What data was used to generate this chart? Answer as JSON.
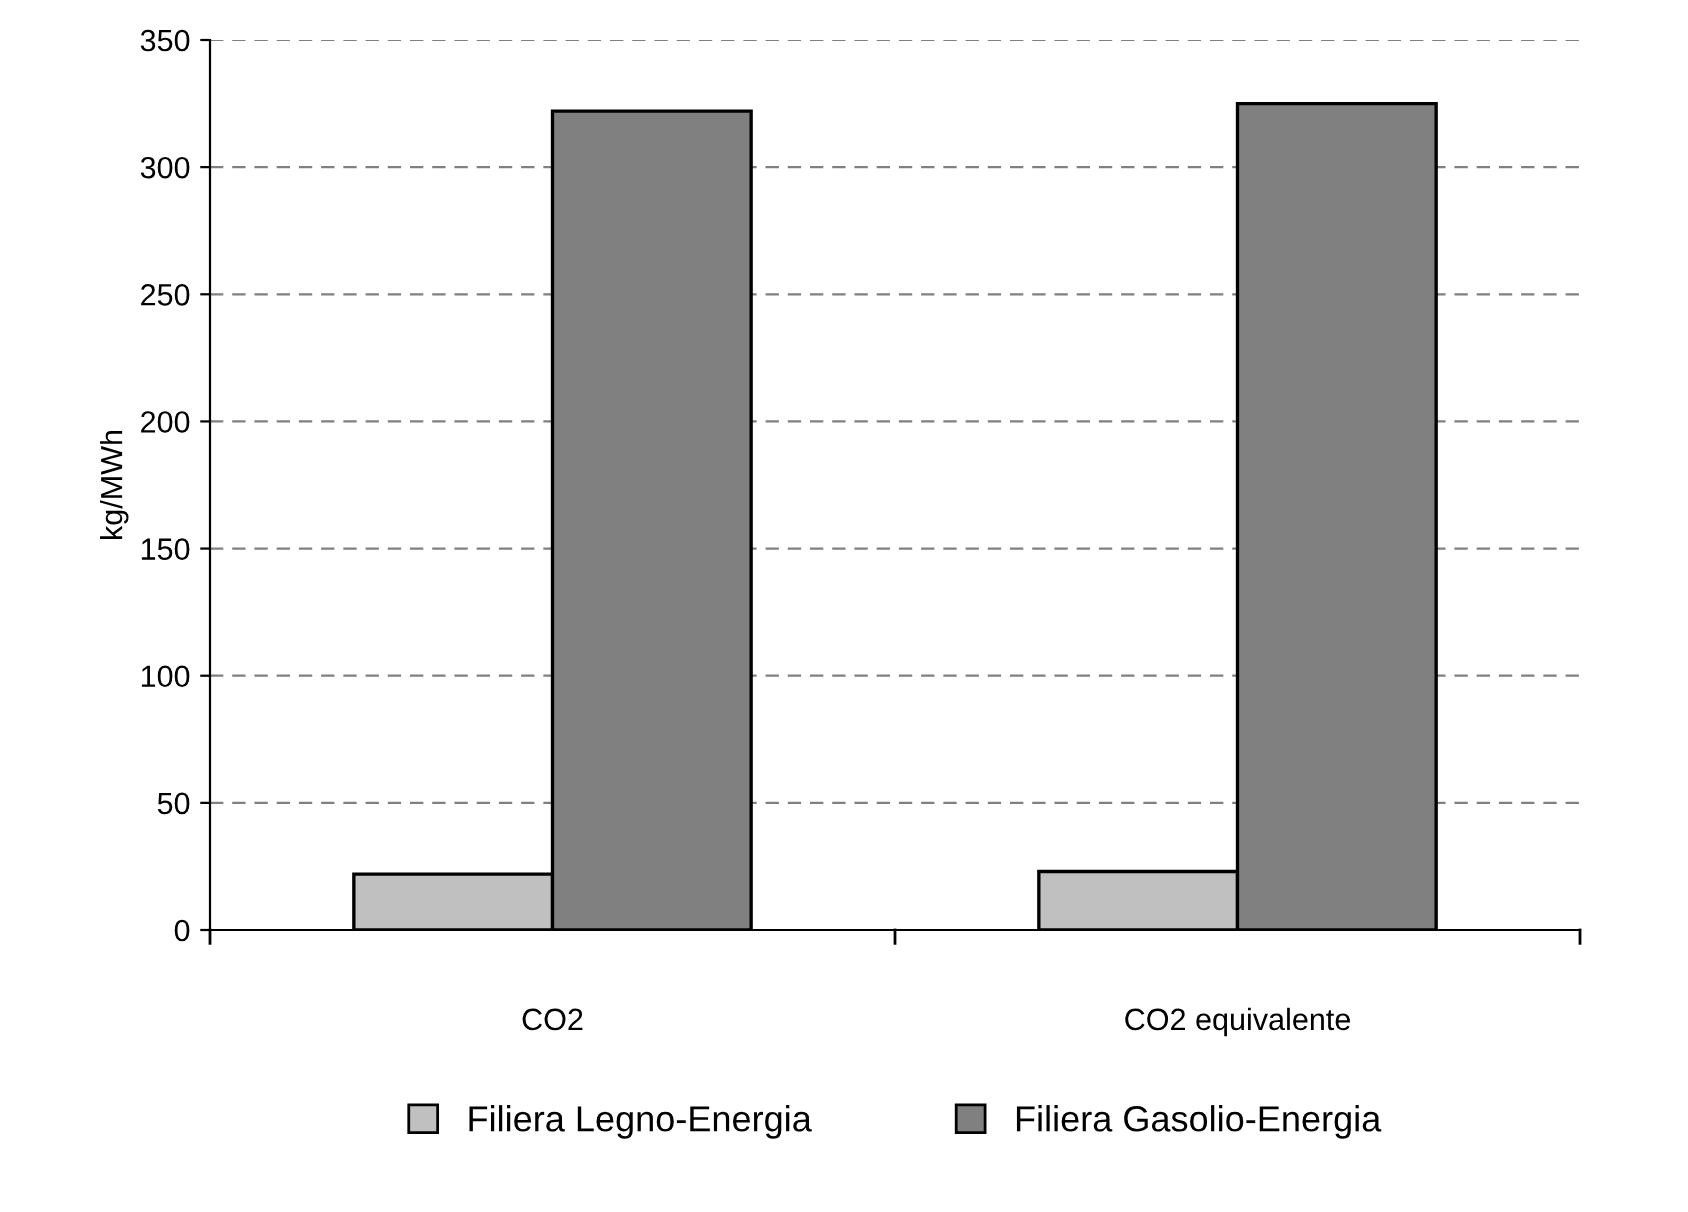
{
  "chart_data": {
    "type": "bar",
    "ylabel": "kg/MWh",
    "categories": [
      "CO2",
      "CO2 equivalente"
    ],
    "series": [
      {
        "name": "Filiera Legno-Energia",
        "color": "#c0c0c0",
        "values": [
          22,
          23
        ]
      },
      {
        "name": "Filiera Gasolio-Energia",
        "color": "#808080",
        "values": [
          322,
          325
        ]
      }
    ],
    "ylim": [
      0,
      350
    ],
    "yticks": [
      0,
      50,
      100,
      150,
      200,
      250,
      300,
      350
    ],
    "grid": "y",
    "legend": "bottom"
  }
}
